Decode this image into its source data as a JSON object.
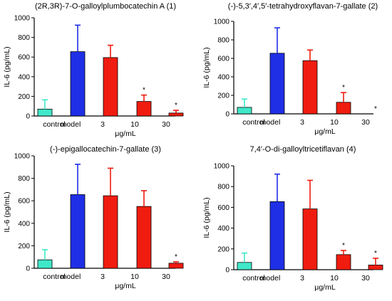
{
  "colors": {
    "control": "#3fe8c8",
    "model": "#1f2fe6",
    "treatment": "#f01c10",
    "outline": "#000000"
  },
  "chart_data": [
    {
      "type": "bar",
      "title": "(2R,3R)-7-O-galloylplumbocatechin A (1)",
      "ylabel": "IL-6 (pg/mL)",
      "xlabel": "μg/mL",
      "categories": [
        "control",
        "model",
        "3",
        "10",
        "30"
      ],
      "values": [
        70,
        655,
        595,
        148,
        30
      ],
      "errors": [
        95,
        270,
        125,
        65,
        28
      ],
      "significance": [
        "",
        "",
        "",
        "*",
        "*"
      ],
      "ylim": [
        0,
        1000
      ],
      "yticks": [
        "0",
        "200",
        "400",
        "600",
        "800",
        "1000"
      ],
      "grid": false
    },
    {
      "type": "bar",
      "title": "(-)-5,3′,4′,5′-tetrahydroxyflavan-7-gallate (2)",
      "ylabel": "IL-6 (pg/mL)",
      "xlabel": "μg/mL",
      "categories": [
        "control",
        "model",
        "3",
        "10",
        "30"
      ],
      "values": [
        70,
        655,
        575,
        125,
        0
      ],
      "errors": [
        90,
        275,
        115,
        105,
        0
      ],
      "significance": [
        "",
        "",
        "",
        "*",
        "*"
      ],
      "ylim": [
        0,
        1000
      ],
      "yticks": [
        "0",
        "200",
        "400",
        "600",
        "800",
        "1000"
      ],
      "grid": false
    },
    {
      "type": "bar",
      "title": "(-)-epigallocatechin-7-gallate (3)",
      "ylabel": "IL-6 (pg/mL)",
      "xlabel": "μg/mL",
      "categories": [
        "control",
        "model",
        "3",
        "10",
        "30"
      ],
      "values": [
        75,
        655,
        645,
        550,
        45
      ],
      "errors": [
        90,
        270,
        245,
        140,
        12
      ],
      "significance": [
        "",
        "",
        "",
        "",
        "*"
      ],
      "ylim": [
        0,
        1000
      ],
      "yticks": [
        "0",
        "200",
        "400",
        "600",
        "800",
        "1000"
      ],
      "grid": false
    },
    {
      "type": "bar",
      "title": "7,4′-O-di-galloyltricetiflavan (4)",
      "ylabel": "IL-6 (pg/mL)",
      "xlabel": "μg/mL",
      "categories": [
        "control",
        "model",
        "3",
        "10",
        "30"
      ],
      "values": [
        70,
        655,
        585,
        145,
        45
      ],
      "errors": [
        90,
        265,
        275,
        40,
        65
      ],
      "significance": [
        "",
        "",
        "",
        "*",
        "*"
      ],
      "ylim": [
        0,
        1000
      ],
      "yticks": [
        "0",
        "200",
        "400",
        "600",
        "800",
        "1000"
      ],
      "grid": false
    }
  ]
}
